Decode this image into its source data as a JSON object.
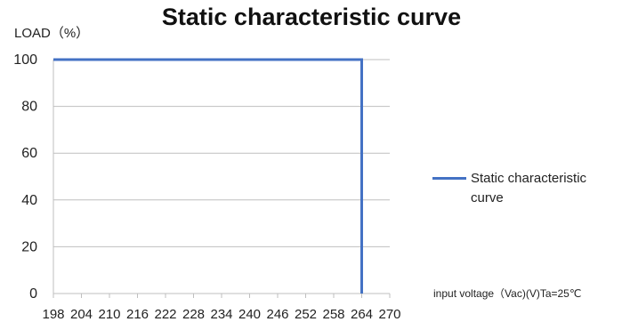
{
  "chart_data": {
    "type": "line",
    "title": "Static characteristic curve",
    "ylabel": "LOAD（%）",
    "xlabel": "input voltage（Vac)(V)Ta=25℃",
    "x_ticks": [
      "198",
      "204",
      "210",
      "216",
      "222",
      "228",
      "234",
      "240",
      "246",
      "252",
      "258",
      "264",
      "270"
    ],
    "y_ticks": [
      "0",
      "20",
      "40",
      "60",
      "80",
      "100"
    ],
    "xlim": [
      198,
      270
    ],
    "ylim": [
      0,
      100
    ],
    "grid": "horizontal",
    "legend_position": "right",
    "series": [
      {
        "name": "Static characteristic curve",
        "color": "#4472c4",
        "points": [
          [
            198,
            100
          ],
          [
            264,
            100
          ],
          [
            264,
            0
          ]
        ]
      }
    ]
  }
}
